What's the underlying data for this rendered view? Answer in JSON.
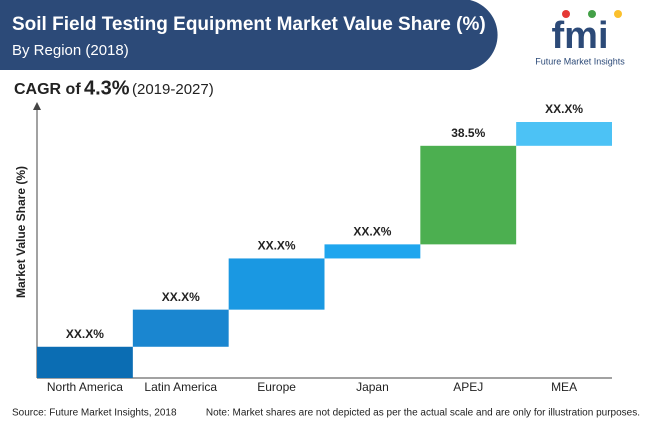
{
  "chart_data": {
    "type": "waterfall",
    "title": "Soil Field Testing Equipment Market Value Share (%)",
    "subtitle": "By Region (2018)",
    "cagr": {
      "prefix": "CAGR of",
      "value": "4.3%",
      "period": "(2019-2027)"
    },
    "y_label": "Market Value Share (%)",
    "categories": [
      "North America",
      "Latin America",
      "Europe",
      "Japan",
      "APEJ",
      "MEA"
    ],
    "values": [
      12.2,
      14.5,
      20.0,
      5.5,
      38.5,
      9.3
    ],
    "value_labels": [
      "XX.X%",
      "XX.X%",
      "XX.X%",
      "XX.X%",
      "38.5%",
      "XX.X%"
    ],
    "colors": [
      "#0b6db3",
      "#1a86d0",
      "#1a98e2",
      "#1fa6ee",
      "#4caf50",
      "#4cc2f5"
    ],
    "ylim": [
      0,
      100
    ]
  },
  "logo": {
    "mark": "fmi",
    "name": "Future Market Insights"
  },
  "footer": {
    "source": "Source: Future Market Insights, 2018",
    "note": "Note: Market shares are not depicted as per the actual scale and are only for illustration purposes."
  }
}
